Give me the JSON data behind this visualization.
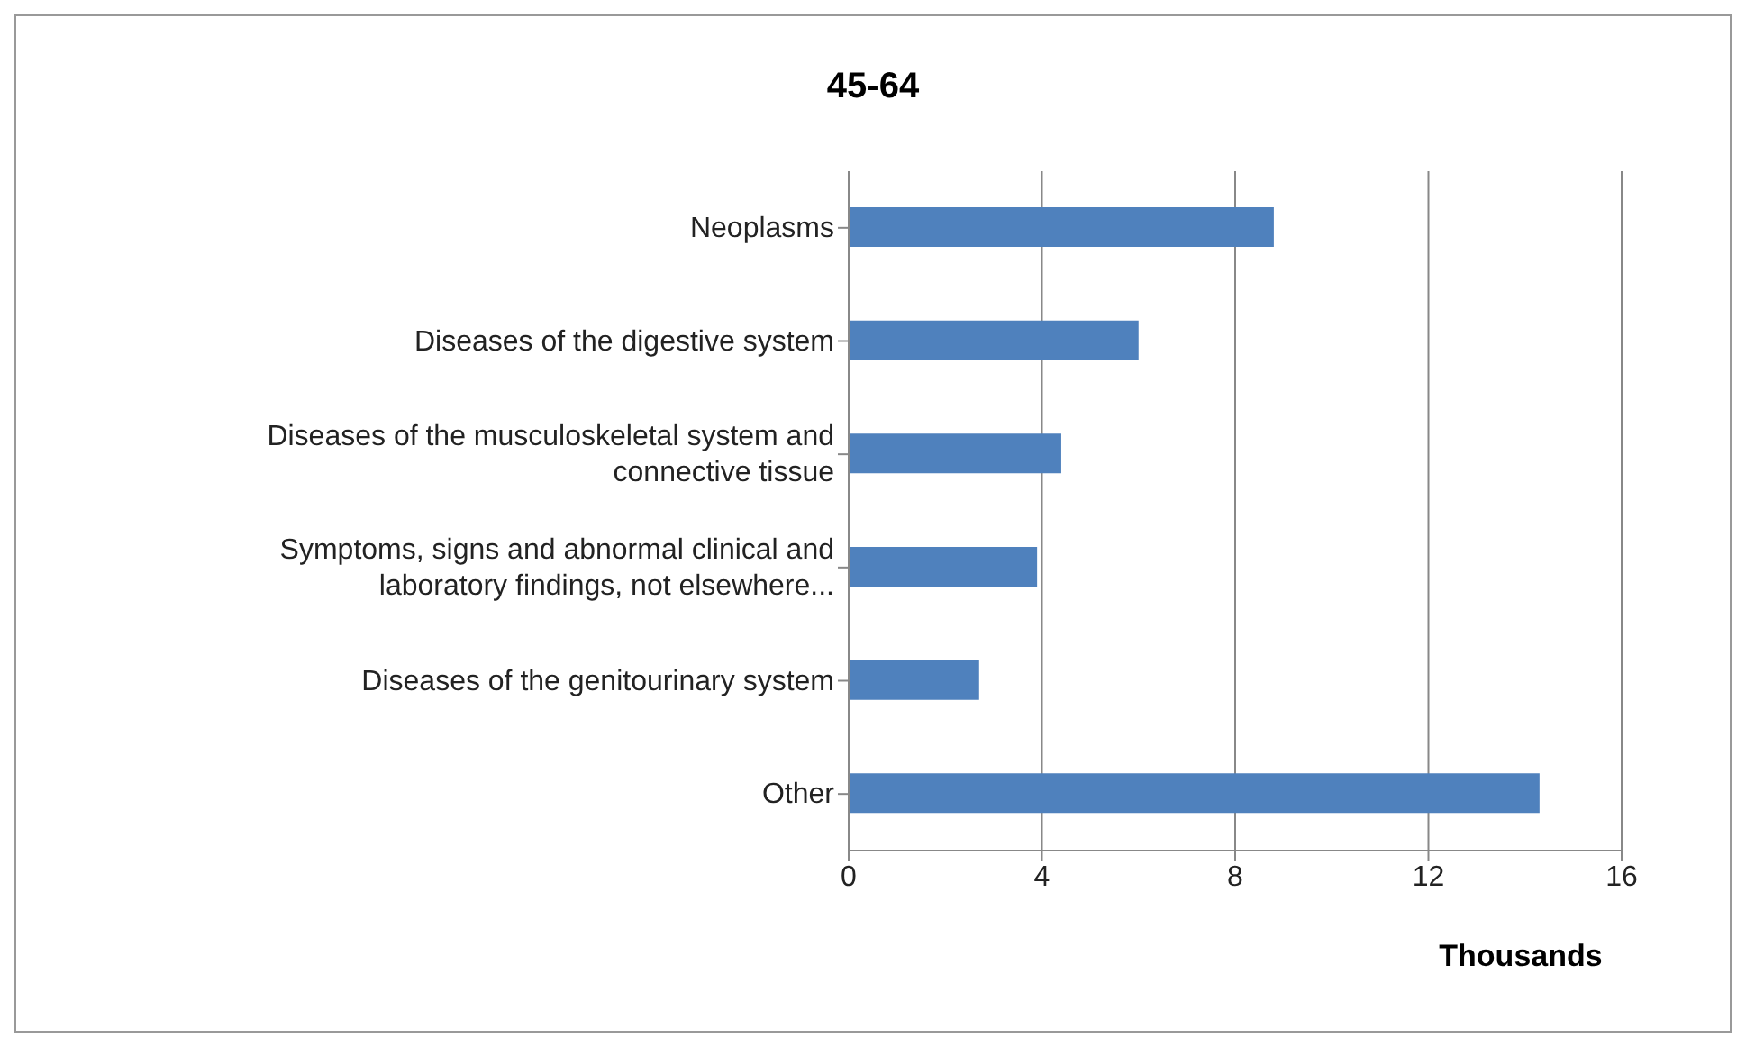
{
  "chart_data": {
    "type": "bar",
    "orientation": "horizontal",
    "title": "45-64",
    "xlabel": "Thousands",
    "categories": [
      "Neoplasms",
      "Diseases of the digestive system",
      "Diseases of the musculoskeletal system and connective tissue",
      "Symptoms, signs and abnormal clinical and laboratory findings, not elsewhere...",
      "Diseases of the genitourinary system",
      "Other"
    ],
    "values": [
      8.8,
      6.0,
      4.4,
      3.9,
      2.7,
      14.3
    ],
    "color": "#4f81bd",
    "xlim": [
      0,
      16
    ],
    "xticks": [
      0,
      4,
      8,
      12,
      16
    ],
    "grid": "x",
    "legend": false
  }
}
